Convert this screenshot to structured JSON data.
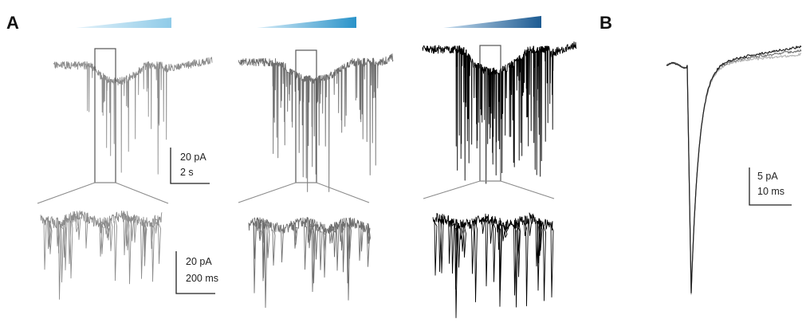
{
  "panels": {
    "a_label": "A",
    "b_label": "B"
  },
  "conditions": [
    {
      "wedge_start_color": "#e4f2fa",
      "wedge_end_color": "#8fcbe8",
      "trace_color": "#8d8d8d"
    },
    {
      "wedge_start_color": "#d6ecf8",
      "wedge_end_color": "#2a93c9",
      "trace_color": "#6f6f6f"
    },
    {
      "wedge_start_color": "#c6dcee",
      "wedge_end_color": "#1d5b92",
      "trace_color": "#000000"
    }
  ],
  "scale_bars": {
    "overview": {
      "current": "20 pA",
      "time": "2 s"
    },
    "zoom": {
      "current": "20 pA",
      "time": "200 ms"
    },
    "average": {
      "current": "5 pA",
      "time": "10 ms"
    }
  },
  "average_traces": [
    {
      "color": "#b5b5b5"
    },
    {
      "color": "#7a7a7a"
    },
    {
      "color": "#222222"
    }
  ]
}
